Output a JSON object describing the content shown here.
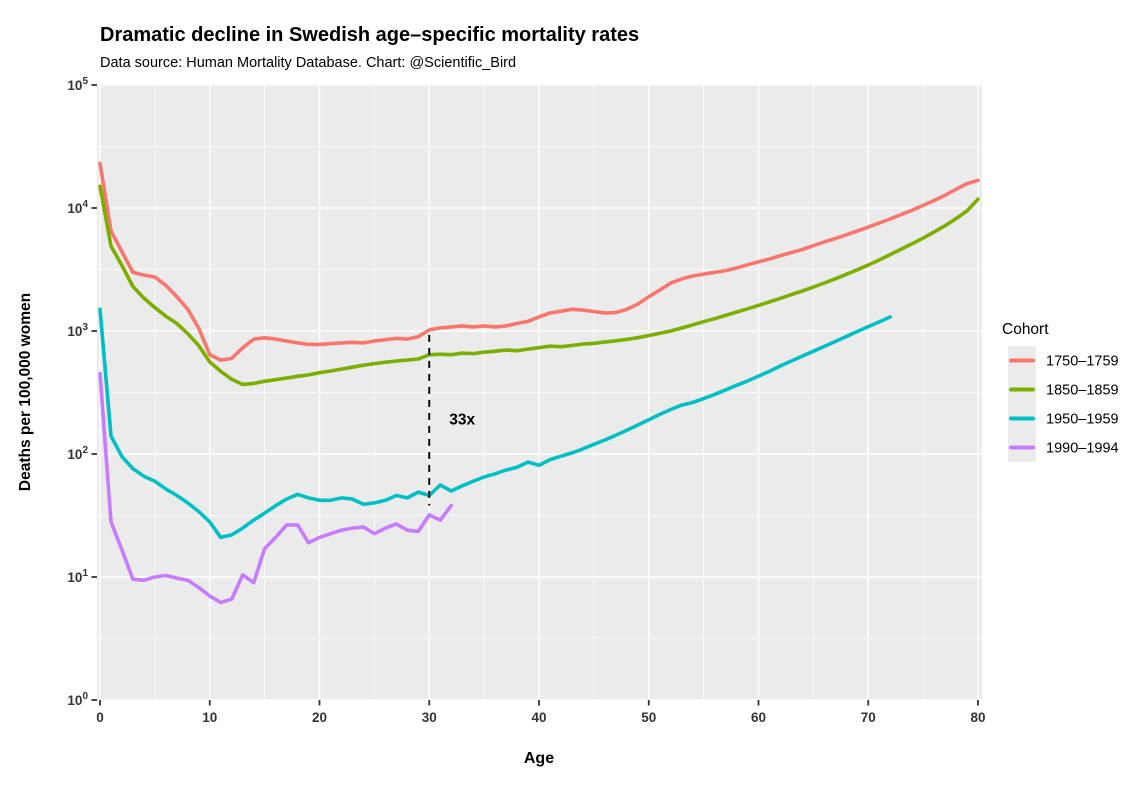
{
  "colors": {
    "page_bg": "#FFFFFF",
    "panel_bg": "#EBEBEB",
    "grid_major": "#FFFFFF",
    "grid_minor": "#F5F5F5",
    "axis_text": "#333333",
    "tick_mark": "#333333",
    "title_text": "#000000",
    "subtitle_text": "#1a1a1a",
    "annotation": "#000000"
  },
  "chart_data": {
    "type": "line",
    "title": "Dramatic decline in Swedish age–specific mortality rates",
    "subtitle": "Data source: Human Mortality Database. Chart: @Scientific_Bird",
    "xlabel": "Age",
    "ylabel": "Deaths per 100,000 women",
    "legend_title": "Cohort",
    "legend_position": "right",
    "y_scale": "log10",
    "ylim_exponents": [
      0,
      5
    ],
    "xlim": [
      0,
      80
    ],
    "x_major_ticks": [
      0,
      10,
      20,
      30,
      40,
      50,
      60,
      70,
      80
    ],
    "x_minor_ticks": [
      5,
      15,
      25,
      35,
      45,
      55,
      65,
      75
    ],
    "y_major_tick_exponents": [
      0,
      1,
      2,
      3,
      4,
      5
    ],
    "y_minor_tick_exponents": [
      0.5,
      1.5,
      2.5,
      3.5,
      4.5
    ],
    "grid": "major and minor white gridlines on gray panel",
    "annotation": {
      "label": "33x",
      "meaning": "ratio between 1750-1759 and 1990-1994 mortality at age 30",
      "line_age": 30,
      "line_value_top": 930,
      "line_value_bottom": 38,
      "label_age": 33,
      "label_value": 190
    },
    "age_step": 1,
    "series": [
      {
        "name": "1750–1759",
        "color": "#F8766D",
        "age_start": 0,
        "values": [
          23000,
          6500,
          4400,
          3000,
          2850,
          2750,
          2350,
          1900,
          1500,
          1050,
          640,
          580,
          600,
          730,
          860,
          880,
          860,
          830,
          800,
          780,
          775,
          790,
          800,
          810,
          800,
          830,
          850,
          870,
          860,
          900,
          1020,
          1060,
          1080,
          1100,
          1080,
          1100,
          1080,
          1100,
          1150,
          1200,
          1300,
          1400,
          1450,
          1500,
          1480,
          1440,
          1400,
          1410,
          1500,
          1650,
          1900,
          2150,
          2450,
          2650,
          2800,
          2900,
          3000,
          3100,
          3250,
          3450,
          3650,
          3850,
          4100,
          4350,
          4600,
          4950,
          5300,
          5650,
          6050,
          6500,
          7000,
          7550,
          8150,
          8850,
          9600,
          10500,
          11500,
          12700,
          14200,
          15800,
          16800
        ]
      },
      {
        "name": "1850–1859",
        "color": "#7CAE00",
        "age_start": 0,
        "values": [
          15000,
          4900,
          3400,
          2300,
          1850,
          1550,
          1320,
          1150,
          950,
          760,
          560,
          470,
          405,
          368,
          375,
          390,
          402,
          415,
          428,
          440,
          458,
          473,
          490,
          508,
          527,
          543,
          558,
          570,
          580,
          592,
          640,
          648,
          642,
          660,
          655,
          672,
          685,
          700,
          692,
          712,
          732,
          752,
          745,
          762,
          782,
          795,
          812,
          832,
          855,
          882,
          920,
          958,
          1000,
          1058,
          1120,
          1190,
          1260,
          1340,
          1425,
          1515,
          1615,
          1725,
          1845,
          1975,
          2115,
          2275,
          2455,
          2655,
          2890,
          3145,
          3440,
          3780,
          4180,
          4630,
          5130,
          5690,
          6380,
          7180,
          8180,
          9480,
          11800
        ]
      },
      {
        "name": "1950–1959",
        "color": "#00BFC4",
        "age_start": 0,
        "values": [
          1500,
          140,
          95,
          76,
          66,
          60,
          52,
          46,
          40,
          34,
          28,
          21,
          22,
          25,
          29,
          33,
          38,
          43,
          47,
          44,
          42,
          42,
          44,
          43,
          39,
          40,
          42,
          46,
          44,
          49,
          46,
          56,
          50,
          55,
          60,
          65,
          69,
          74,
          78,
          86,
          81,
          90,
          96,
          102,
          110,
          120,
          130,
          142,
          156,
          172,
          190,
          210,
          230,
          250,
          262,
          282,
          305,
          332,
          362,
          392,
          430,
          470,
          520,
          570,
          625,
          685,
          750,
          822,
          902,
          990,
          1085,
          1185,
          1300
        ]
      },
      {
        "name": "1990–1994",
        "color": "#C77CFF",
        "age_start": 0,
        "values": [
          450,
          28,
          16.5,
          9.6,
          9.4,
          10.0,
          10.3,
          9.8,
          9.4,
          8.2,
          7.0,
          6.2,
          6.6,
          10.4,
          9.0,
          17,
          21,
          26.5,
          26.5,
          19,
          21,
          22.5,
          24,
          25,
          25.5,
          22.5,
          25,
          27,
          24,
          23.5,
          32,
          29,
          38
        ]
      }
    ]
  }
}
